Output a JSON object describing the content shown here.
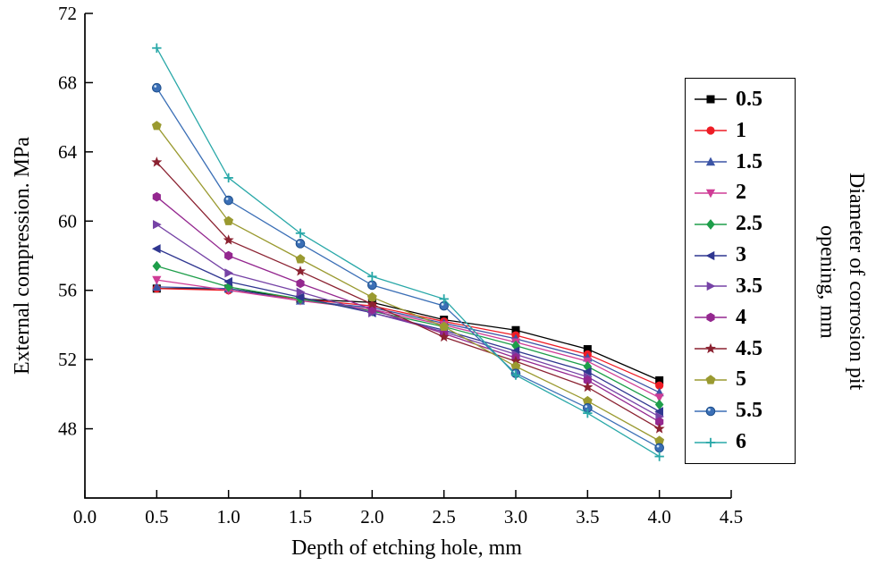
{
  "chart_data": {
    "type": "line",
    "title": "",
    "xlabel": "Depth of etching hole, mm",
    "ylabel": "External compression. MPa",
    "legend_title_lines": [
      "Diameter of corrosion pit",
      "opening, mm"
    ],
    "legend_position": "right",
    "grid": false,
    "xlim": [
      0,
      4.5
    ],
    "ylim": [
      44,
      72
    ],
    "xtick_values": [
      0,
      0.5,
      1.0,
      1.5,
      2.0,
      2.5,
      3.0,
      3.5,
      4.0,
      4.5
    ],
    "xtick_labels": [
      "0.0",
      "0.5",
      "1.0",
      "1.5",
      "2.0",
      "2.5",
      "3.0",
      "3.5",
      "4.0",
      "4.5"
    ],
    "ytick_values": [
      48,
      52,
      56,
      60,
      64,
      68,
      72
    ],
    "ytick_labels": [
      "48",
      "52",
      "56",
      "60",
      "64",
      "68",
      "72"
    ],
    "x": [
      0.5,
      1.0,
      1.5,
      2.0,
      2.5,
      3.0,
      3.5,
      4.0
    ],
    "series": [
      {
        "name": "0.5",
        "color": "#000000",
        "marker": "square",
        "values": [
          56.1,
          56.1,
          55.5,
          55.3,
          54.3,
          53.7,
          52.6,
          50.8
        ]
      },
      {
        "name": "1",
        "color": "#ee1c25",
        "marker": "circle",
        "values": [
          56.1,
          56.0,
          55.5,
          55.1,
          54.2,
          53.4,
          52.3,
          50.5
        ]
      },
      {
        "name": "1.5",
        "color": "#3b54a5",
        "marker": "triangle-up",
        "values": [
          56.2,
          56.1,
          55.4,
          55.0,
          54.1,
          53.2,
          52.1,
          50.1
        ]
      },
      {
        "name": "2",
        "color": "#cf3d96",
        "marker": "triangle-down",
        "values": [
          56.6,
          56.0,
          55.4,
          54.9,
          54.0,
          53.0,
          51.9,
          49.8
        ]
      },
      {
        "name": "2.5",
        "color": "#1e9e4a",
        "marker": "diamond",
        "values": [
          57.4,
          56.2,
          55.5,
          54.8,
          53.9,
          52.8,
          51.6,
          49.4
        ]
      },
      {
        "name": "3",
        "color": "#2f3690",
        "marker": "triangle-left",
        "values": [
          58.4,
          56.5,
          55.6,
          54.7,
          53.7,
          52.5,
          51.3,
          49.0
        ]
      },
      {
        "name": "3.5",
        "color": "#7643a6",
        "marker": "triangle-right",
        "values": [
          59.8,
          57.0,
          55.9,
          54.7,
          53.6,
          52.3,
          51.0,
          48.7
        ]
      },
      {
        "name": "4",
        "color": "#94278f",
        "marker": "hexagon",
        "values": [
          61.4,
          58.0,
          56.4,
          54.9,
          53.5,
          52.1,
          50.8,
          48.4
        ]
      },
      {
        "name": "4.5",
        "color": "#8b2231",
        "marker": "star",
        "values": [
          63.4,
          58.9,
          57.1,
          55.2,
          53.3,
          51.9,
          50.4,
          48.0
        ]
      },
      {
        "name": "5",
        "color": "#9a9a30",
        "marker": "pentagon",
        "values": [
          65.5,
          60.0,
          57.8,
          55.6,
          53.9,
          51.6,
          49.6,
          47.3
        ]
      },
      {
        "name": "5.5",
        "color": "#3b6fb6",
        "marker": "sphere",
        "values": [
          67.7,
          61.2,
          58.7,
          56.3,
          55.1,
          51.2,
          49.2,
          46.9
        ]
      },
      {
        "name": "6",
        "color": "#29a8a8",
        "marker": "plus",
        "values": [
          70.0,
          62.5,
          59.3,
          56.8,
          55.5,
          51.1,
          48.9,
          46.4
        ]
      }
    ]
  }
}
